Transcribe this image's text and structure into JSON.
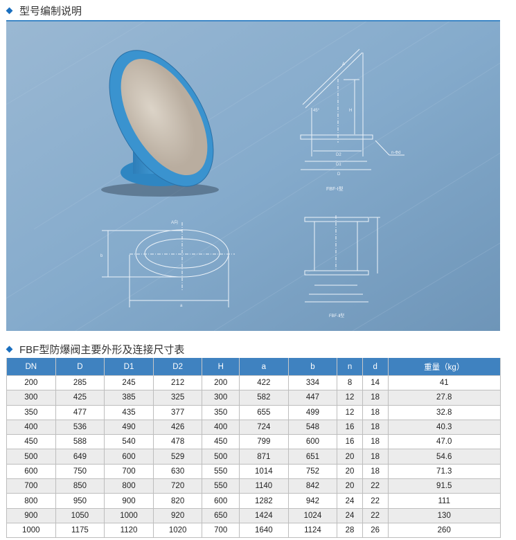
{
  "section1": {
    "title": "型号编制说明"
  },
  "drawings": {
    "type1": {
      "label_a": "A",
      "angle": "45°",
      "h": "H",
      "d2": "D2",
      "d1": "D1",
      "d": "D",
      "holes": "n-Φd",
      "caption": "FBF-Ⅰ型"
    },
    "view_a": {
      "title": "A向",
      "b": "b",
      "a": "a"
    },
    "type2": {
      "caption": "FBF-Ⅱ型"
    }
  },
  "section2": {
    "title": "FBF型防爆阀主要外形及连接尺寸表"
  },
  "table": {
    "headers": [
      "DN",
      "D",
      "D1",
      "D2",
      "H",
      "a",
      "b",
      "n",
      "d",
      "重量（kg）"
    ],
    "rows": [
      [
        "200",
        "285",
        "245",
        "212",
        "200",
        "422",
        "334",
        "8",
        "14",
        "41"
      ],
      [
        "300",
        "425",
        "385",
        "325",
        "300",
        "582",
        "447",
        "12",
        "18",
        "27.8"
      ],
      [
        "350",
        "477",
        "435",
        "377",
        "350",
        "655",
        "499",
        "12",
        "18",
        "32.8"
      ],
      [
        "400",
        "536",
        "490",
        "426",
        "400",
        "724",
        "548",
        "16",
        "18",
        "40.3"
      ],
      [
        "450",
        "588",
        "540",
        "478",
        "450",
        "799",
        "600",
        "16",
        "18",
        "47.0"
      ],
      [
        "500",
        "649",
        "600",
        "529",
        "500",
        "871",
        "651",
        "20",
        "18",
        "54.6"
      ],
      [
        "600",
        "750",
        "700",
        "630",
        "550",
        "1014",
        "752",
        "20",
        "18",
        "71.3"
      ],
      [
        "700",
        "850",
        "800",
        "720",
        "550",
        "1140",
        "842",
        "20",
        "22",
        "91.5"
      ],
      [
        "800",
        "950",
        "900",
        "820",
        "600",
        "1282",
        "942",
        "24",
        "22",
        "111"
      ],
      [
        "900",
        "1050",
        "1000",
        "920",
        "650",
        "1424",
        "1024",
        "24",
        "22",
        "130"
      ],
      [
        "1000",
        "1175",
        "1120",
        "1020",
        "700",
        "1640",
        "1124",
        "28",
        "26",
        "260"
      ]
    ]
  },
  "colors": {
    "accent": "#3f82c0",
    "panel_bg": "#7fa5c6",
    "valve": "#3a8fc9"
  }
}
